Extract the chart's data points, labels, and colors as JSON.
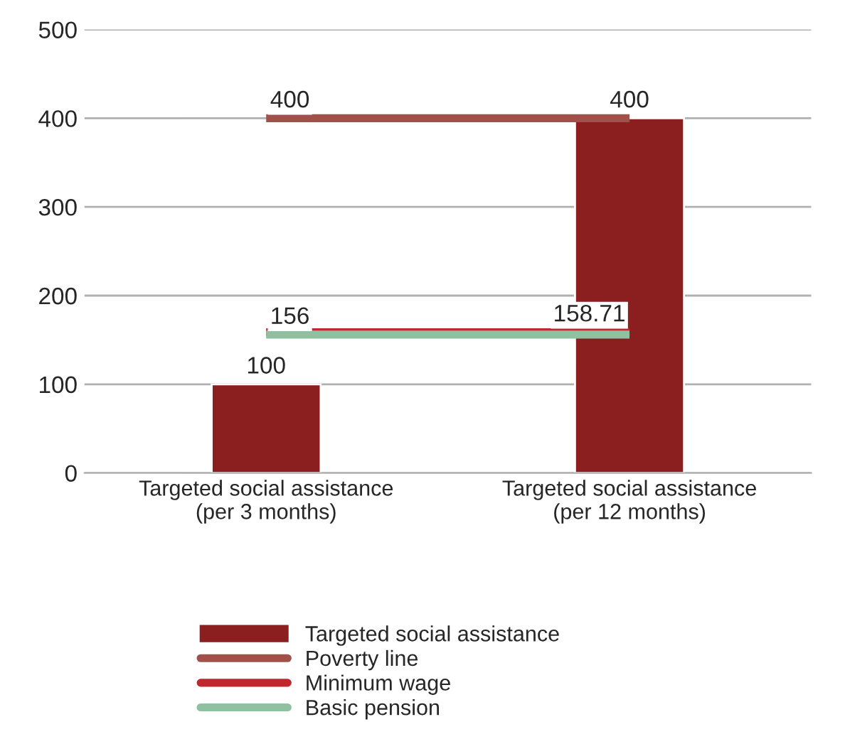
{
  "chart_data": {
    "type": "bar",
    "categories": [
      "Targeted social assistance\n(per 3 months)",
      "Targeted social assistance\n(per 12 months)"
    ],
    "series": [
      {
        "name": "Targeted social assistance",
        "color": "#8b1e1e",
        "values": [
          100,
          400
        ],
        "value_labels": [
          "100",
          "400"
        ]
      },
      {
        "name": "Poverty line",
        "type": "line",
        "color": "#a0524a",
        "values": [
          400,
          400
        ],
        "value_labels": [
          "400",
          null
        ]
      },
      {
        "name": "Minimum wage",
        "type": "line",
        "color": "#c0282d",
        "values": [
          158.71,
          158.71
        ],
        "value_labels": [
          null,
          "158.71"
        ]
      },
      {
        "name": "Basic pension",
        "type": "line",
        "color": "#8fc1a0",
        "values": [
          156,
          156
        ],
        "value_labels": [
          "156",
          null
        ]
      }
    ],
    "ylim": [
      0,
      500
    ],
    "yticks": [
      0,
      100,
      200,
      300,
      400,
      500
    ],
    "grid": "y",
    "legend": "bottom"
  }
}
